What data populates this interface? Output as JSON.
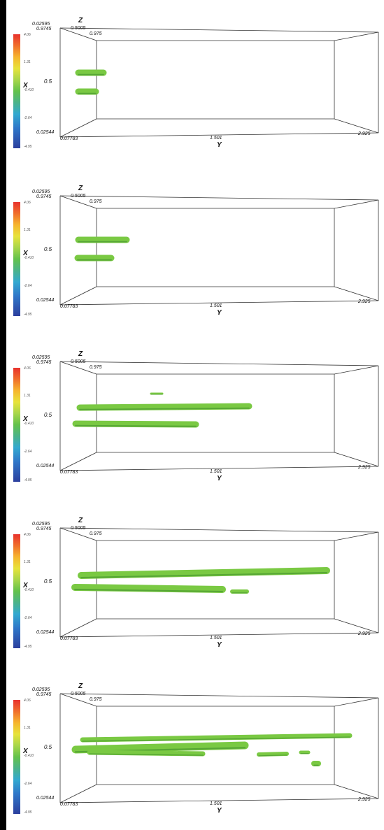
{
  "colorbar": {
    "axis_label": "X",
    "ticks": [
      "4.06",
      "1.31",
      "-0.410",
      "-2.64",
      "-4.95"
    ]
  },
  "axes": {
    "z_label": "Z",
    "y_label": "Y",
    "x_top": "0.9745",
    "x_mid": "0.5",
    "x_bottom": "0.02544",
    "z_top": "0.02595",
    "z_mid": "0.5005",
    "z_end": "0.975",
    "y_start": "0.07783",
    "y_mid": "1.501",
    "y_end": "2.925"
  },
  "panels": [
    {
      "id": "frame-1"
    },
    {
      "id": "frame-2"
    },
    {
      "id": "frame-3"
    },
    {
      "id": "frame-4"
    },
    {
      "id": "frame-5"
    }
  ],
  "colors": {
    "jet": "#7ac943",
    "jet_dark": "#3f8f2c",
    "frame": "#333333"
  }
}
